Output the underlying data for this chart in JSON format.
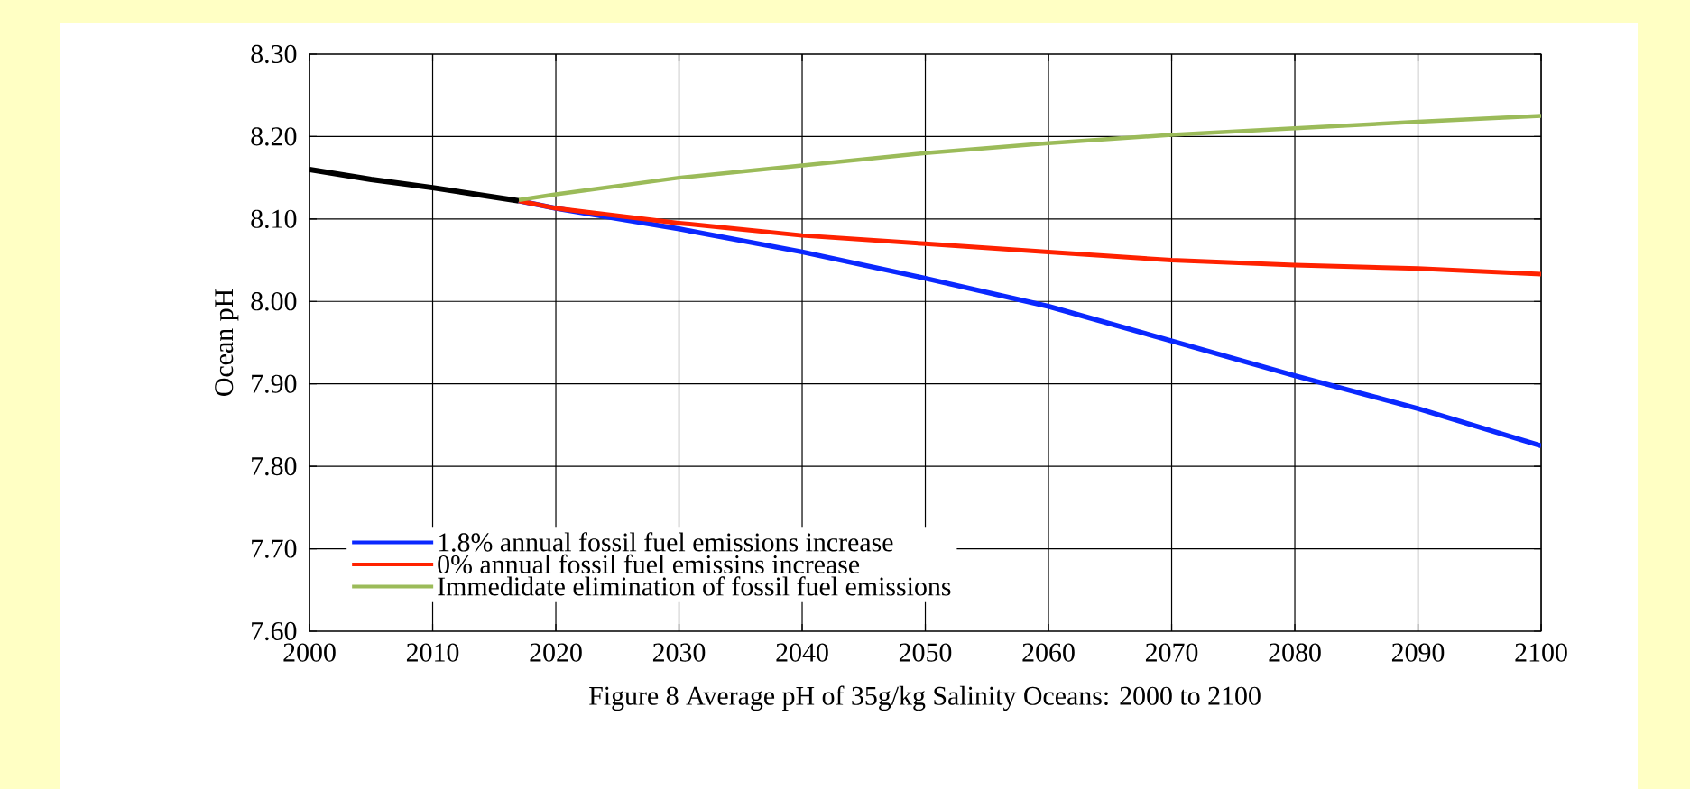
{
  "chart_data": {
    "type": "line",
    "ylabel": "Ocean pH",
    "annotations": [
      "Figure 8 Average pH of 35g/kg Salinity Oceans: 2000 to 2100"
    ],
    "xlim": [
      2000,
      2100
    ],
    "xticks": [
      2000,
      2010,
      2020,
      2030,
      2040,
      2050,
      2060,
      2070,
      2080,
      2090,
      2100
    ],
    "ylim": [
      7.6,
      8.3
    ],
    "yticks": [
      {
        "value": 7.6,
        "label": "7.60"
      },
      {
        "value": 7.7,
        "label": "7.70"
      },
      {
        "value": 7.8,
        "label": "7.80"
      },
      {
        "value": 7.9,
        "label": "7.90"
      },
      {
        "value": 8.0,
        "label": "8.00"
      },
      {
        "value": 8.1,
        "label": "8.10"
      },
      {
        "value": 8.2,
        "label": "8.20"
      },
      {
        "value": 8.3,
        "label": "8.30"
      }
    ],
    "grid": true,
    "legend": "bottom left",
    "marker": "none",
    "line_style": "solid",
    "series": [
      {
        "color": "#000000",
        "x": [
          2000,
          2005,
          2010,
          2017
        ],
        "values": [
          8.16,
          8.148,
          8.138,
          8.122
        ]
      },
      {
        "name": "1.8% annual fossil fuel emissions increase",
        "color": "#0a28ff",
        "x": [
          2017,
          2020,
          2030,
          2040,
          2050,
          2060,
          2070,
          2080,
          2090,
          2100
        ],
        "values": [
          8.122,
          8.113,
          8.088,
          8.06,
          8.028,
          7.994,
          7.952,
          7.91,
          7.87,
          7.825
        ]
      },
      {
        "name": "0% annual fossil fuel emissins increase",
        "color": "#ff2200",
        "x": [
          2017,
          2020,
          2030,
          2040,
          2050,
          2060,
          2070,
          2080,
          2090,
          2100
        ],
        "values": [
          8.122,
          8.113,
          8.095,
          8.08,
          8.07,
          8.06,
          8.05,
          8.044,
          8.04,
          8.033
        ]
      },
      {
        "name": "Immedidate elimination of fossil fuel emissions",
        "color": "#9bbb59",
        "x": [
          2017,
          2020,
          2030,
          2040,
          2050,
          2060,
          2070,
          2080,
          2090,
          2100
        ],
        "values": [
          8.123,
          8.13,
          8.15,
          8.165,
          8.18,
          8.192,
          8.202,
          8.21,
          8.218,
          8.225
        ]
      }
    ]
  }
}
